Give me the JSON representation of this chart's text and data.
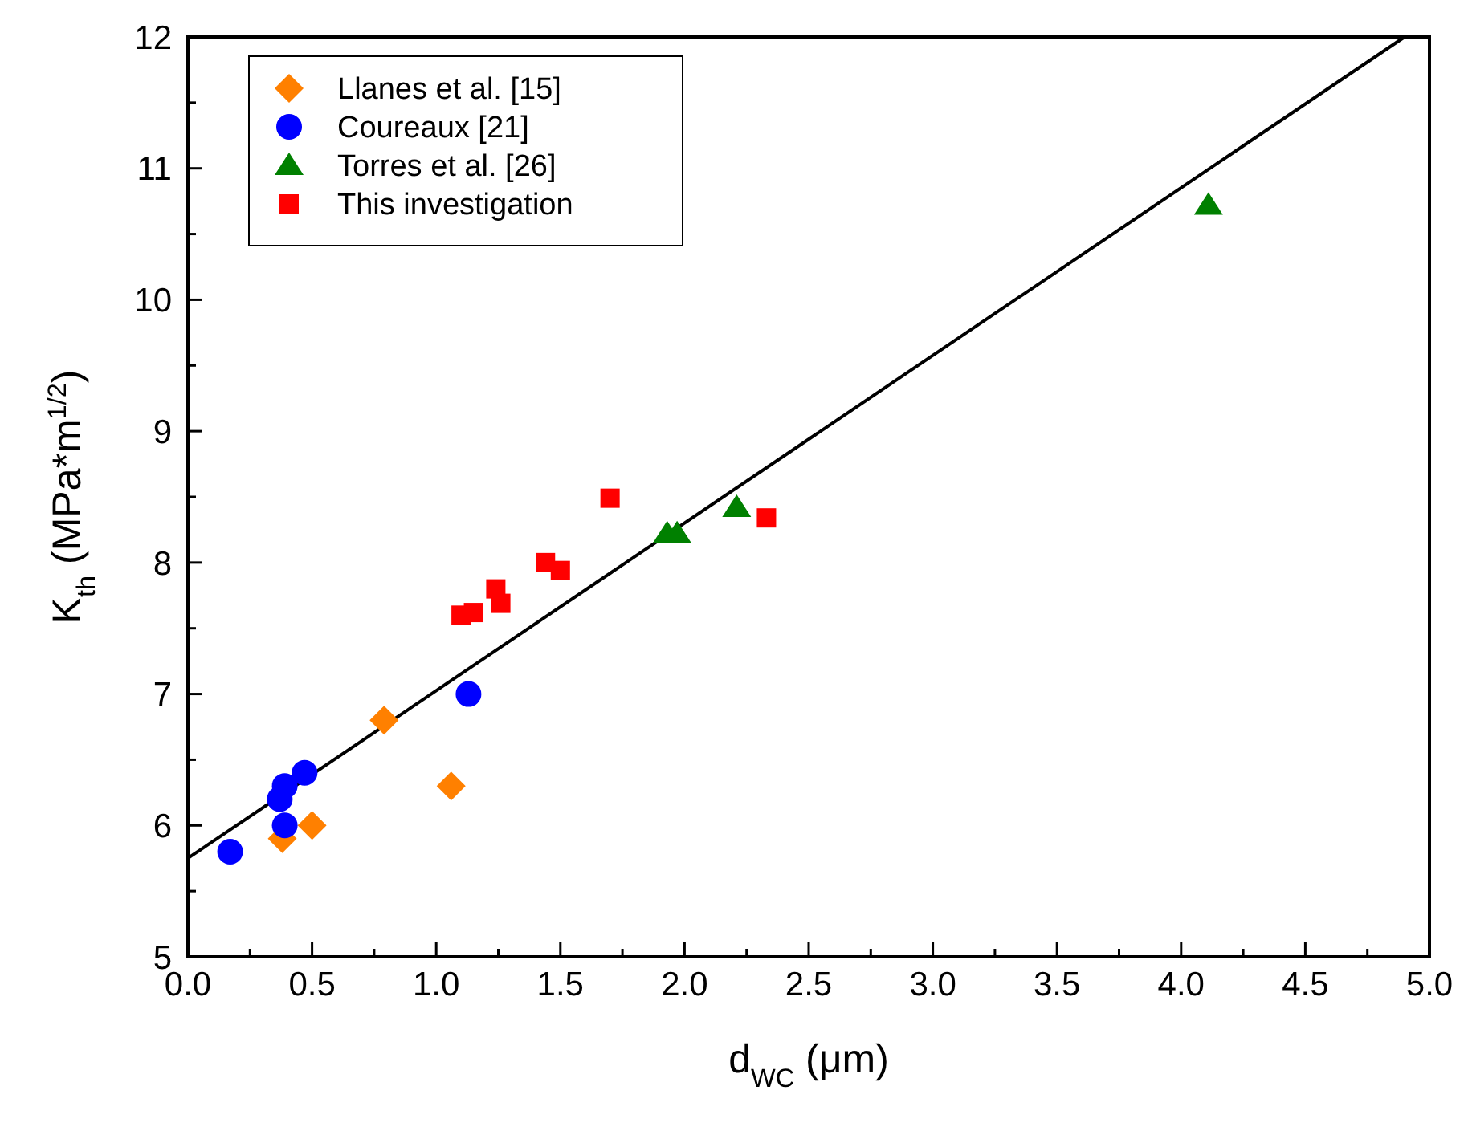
{
  "chart_data": {
    "type": "scatter",
    "xlabel": "d$_{WC}$ (μm)",
    "ylabel": "K$_{th}$ (MPa*m$^{1/2}$)",
    "xlim": [
      0,
      5
    ],
    "ylim": [
      5,
      12
    ],
    "xticks": [
      {
        "value": 0,
        "label": "0.0"
      },
      {
        "value": 0.25,
        "label": null
      },
      {
        "value": 0.5,
        "label": "0.5"
      },
      {
        "value": 0.75,
        "label": null
      },
      {
        "value": 1,
        "label": "1.0"
      },
      {
        "value": 1.25,
        "label": null
      },
      {
        "value": 1.5,
        "label": "1.5"
      },
      {
        "value": 1.75,
        "label": null
      },
      {
        "value": 2,
        "label": "2.0"
      },
      {
        "value": 2.25,
        "label": null
      },
      {
        "value": 2.5,
        "label": "2.5"
      },
      {
        "value": 2.75,
        "label": null
      },
      {
        "value": 3,
        "label": "3.0"
      },
      {
        "value": 3.25,
        "label": null
      },
      {
        "value": 3.5,
        "label": "3.5"
      },
      {
        "value": 3.75,
        "label": null
      },
      {
        "value": 4,
        "label": "4.0"
      },
      {
        "value": 4.25,
        "label": null
      },
      {
        "value": 4.5,
        "label": "4.5"
      },
      {
        "value": 4.75,
        "label": null
      },
      {
        "value": 5,
        "label": "5.0"
      }
    ],
    "yticks": [
      5,
      {
        "value": 5.5,
        "label": null
      },
      6,
      {
        "value": 6.5,
        "label": null
      },
      7,
      {
        "value": 7.5,
        "label": null
      },
      8,
      {
        "value": 8.5,
        "label": null
      },
      9,
      {
        "value": 9.5,
        "label": null
      },
      10,
      {
        "value": 10.5,
        "label": null
      },
      11,
      {
        "value": 11.5,
        "label": null
      },
      12
    ],
    "legend": "top left",
    "grid": false,
    "series": [
      {
        "name": "Llanes et al. [15]",
        "color": "#ff8000",
        "marker": "diamond",
        "x": [
          0.38,
          0.5,
          0.79,
          1.06
        ],
        "values": [
          5.9,
          6.0,
          6.8,
          6.3
        ]
      },
      {
        "name": "Coureaux [21]",
        "color": "#0000ff",
        "marker": "circle",
        "x": [
          0.17,
          0.37,
          0.39,
          0.39,
          0.47,
          1.13
        ],
        "values": [
          5.8,
          6.2,
          6.3,
          6.0,
          6.4,
          7.0
        ]
      },
      {
        "name": "Torres et al. [26]",
        "color": "#008000",
        "marker": "triangle",
        "x": [
          1.93,
          1.97,
          2.21,
          4.11
        ],
        "values": [
          8.22,
          8.22,
          8.42,
          10.72
        ]
      },
      {
        "name": "This investigation",
        "color": "#ff0000",
        "marker": "square",
        "x": [
          1.1,
          1.15,
          1.24,
          1.26,
          1.44,
          1.5,
          1.7,
          2.33
        ],
        "values": [
          7.6,
          7.62,
          7.8,
          7.69,
          8.0,
          7.94,
          8.49,
          8.34
        ]
      },
      {
        "type": "line",
        "color": "#000000",
        "marker": "none",
        "line_style": "solid",
        "x": [
          0,
          4.9
        ],
        "values": [
          5.75,
          12
        ]
      }
    ]
  }
}
